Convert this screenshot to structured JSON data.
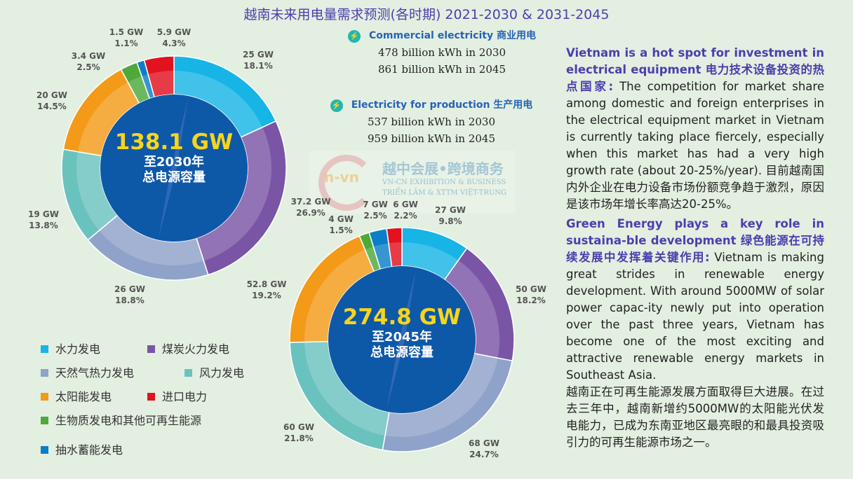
{
  "title": "越南未来用电量需求预测(各时期) 2021-2030 & 2031-2045",
  "info": [
    {
      "heading": "Commercial electricity 商业用电",
      "lines": [
        "478 billion kWh in 2030",
        "861 billion kWh in 2045"
      ],
      "icon": "lightning-icon"
    },
    {
      "heading": "Electricity for production 生产用电",
      "lines": [
        "537 billion kWh in 2030",
        "959 billion kWh in 2045"
      ],
      "icon": "lightning-icon"
    }
  ],
  "watermark": {
    "logo": "n-vn",
    "line1": "越中会展•跨境商务",
    "line2": "VN-CN EXHIBITION & BUSINESS",
    "line3": "TRIỂN LÃM & XTTM VIỆT-TRUNG"
  },
  "legend": [
    {
      "label": "水力发电",
      "color": "#17b5e6"
    },
    {
      "label": "煤炭火力发电",
      "color": "#7a55a5"
    },
    {
      "label": "天然气热力发电",
      "color": "#8fa2c9"
    },
    {
      "label": "风力发电",
      "color": "#6ac2bf"
    },
    {
      "label": "太阳能发电",
      "color": "#f39a18"
    },
    {
      "label": "进口电力",
      "color": "#e2121f"
    },
    {
      "label": "生物质发电和其他可再生能源",
      "color": "#4ea93a"
    },
    {
      "label": "抽水蓄能发电",
      "color": "#0b7ec8"
    }
  ],
  "chart_data": [
    {
      "type": "pie",
      "donut": true,
      "center_value": "138.1 GW",
      "center_line1": "至2030年",
      "center_line2": "总电源容量",
      "slices": [
        {
          "category": "水力发电",
          "value_label": "25 GW",
          "value": 25,
          "percent": "18.1%"
        },
        {
          "category": "煤炭火力发电",
          "value_label": "37.2 GW",
          "value": 37.2,
          "percent": "26.9%"
        },
        {
          "category": "天然气热力发电",
          "value_label": "26 GW",
          "value": 26,
          "percent": "18.8%"
        },
        {
          "category": "风力发电",
          "value_label": "19 GW",
          "value": 19,
          "percent": "13.8%"
        },
        {
          "category": "太阳能发电",
          "value_label": "20 GW",
          "value": 20,
          "percent": "14.5%"
        },
        {
          "category": "生物质发电和其他可再生能源",
          "value_label": "3.4 GW",
          "value": 3.4,
          "percent": "2.5%"
        },
        {
          "category": "抽水蓄能发电",
          "value_label": "1.5 GW",
          "value": 1.5,
          "percent": "1.1%"
        },
        {
          "category": "进口电力",
          "value_label": "5.9 GW",
          "value": 5.9,
          "percent": "4.3%"
        }
      ]
    },
    {
      "type": "pie",
      "donut": true,
      "center_value": "274.8 GW",
      "center_line1": "至2045年",
      "center_line2": "总电源容量",
      "slices": [
        {
          "category": "水力发电",
          "value_label": "27 GW",
          "value": 27,
          "percent": "9.8%"
        },
        {
          "category": "煤炭火力发电",
          "value_label": "50 GW",
          "value": 50,
          "percent": "18.2%"
        },
        {
          "category": "天然气热力发电",
          "value_label": "68 GW",
          "value": 68,
          "percent": "24.7%"
        },
        {
          "category": "风力发电",
          "value_label": "60 GW",
          "value": 60,
          "percent": "21.8%"
        },
        {
          "category": "太阳能发电",
          "value_label": "52.8 GW",
          "value": 52.8,
          "percent": "19.2%"
        },
        {
          "category": "生物质发电和其他可再生能源",
          "value_label": "4 GW",
          "value": 4,
          "percent": "1.5%"
        },
        {
          "category": "抽水蓄能发电",
          "value_label": "7 GW",
          "value": 7,
          "percent": "2.5%"
        },
        {
          "category": "进口电力",
          "value_label": "6 GW",
          "value": 6,
          "percent": "2.2%"
        }
      ]
    }
  ],
  "article": {
    "heading1": "Vietnam is a hot spot for investment in electrical equipment 电力技术设备投资的热点国家:",
    "body1": " The competition for market share among domestic and foreign enterprises in the electrical equipment market in Vietnam is currently taking place fiercely, especially when this market has had a very high growth rate (about 20-25%/year). 目前越南国内外企业在电力设备市场份额竞争趋于激烈，原因是该市场年增长率高达20-25%。",
    "heading2": "Green Energy plays a key role in sustaina-ble development 绿色能源在可持续发展中发挥着关键作用:",
    "body2": " Vietnam is making great strides in renewable energy development. With around 5000MW of solar power capac-ity newly put into operation over the past three years, Vietnam has become one of the most exciting and attractive renewable energy markets in Southeast Asia.",
    "body3": "越南正在可再生能源发展方面取得巨大进展。在过去三年中，越南新增约5000MW的太阳能光伏发电能力，已成为东南亚地区最亮眼的和最具投资吸引力的可再生能源市场之一。"
  }
}
